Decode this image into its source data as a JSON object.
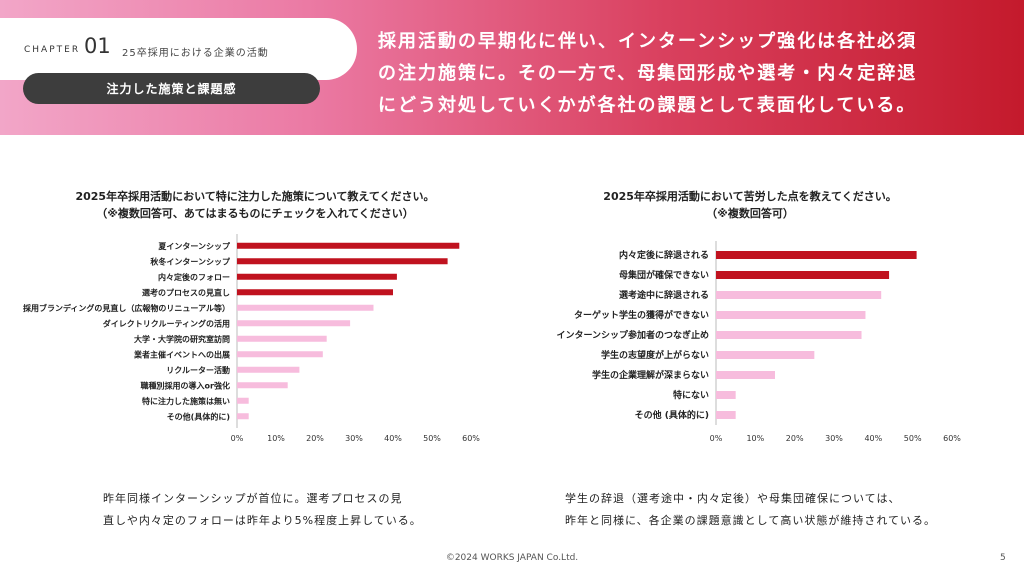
{
  "header": {
    "chapter_word": "CHAPTER",
    "chapter_num": "01",
    "chapter_title": "25卒採用における企業の活動",
    "topic": "注力した施策と課題感",
    "headline_lines": [
      "採用活動の早期化に伴い、インターンシップ強化は各社必須",
      "の注力施策に。その一方で、母集団形成や選考・内々定辞退",
      "にどう対処していくかが各社の課題として表面化している。"
    ]
  },
  "colors": {
    "highlight": "#c0121f",
    "normal": "#f7bcdd"
  },
  "chart_data": [
    {
      "type": "bar",
      "orientation": "horizontal",
      "title_lines": [
        "2025年卒採用活動において特に注力した施策について教えてください。",
        "（※複数回答可、あてはまるものにチェックを入れてください）"
      ],
      "categories": [
        "夏インターンシップ",
        "秋冬インターンシップ",
        "内々定後のフォロー",
        "選考のプロセスの見直し",
        "採用ブランディングの見直し（広報物のリニューアル等）",
        "ダイレクトリクルーティングの活用",
        "大学・大学院の研究室訪問",
        "業者主催イベントへの出展",
        "リクルーター活動",
        "職種別採用の導入or強化",
        "特に注力した施策は無い",
        "その他(具体的に)"
      ],
      "values": [
        57,
        54,
        41,
        40,
        35,
        29,
        23,
        22,
        16,
        13,
        3,
        3
      ],
      "highlight": [
        true,
        true,
        true,
        true,
        false,
        false,
        false,
        false,
        false,
        false,
        false,
        false
      ],
      "xlim": [
        0,
        60
      ],
      "xticks": [
        "0%",
        "10%",
        "20%",
        "30%",
        "40%",
        "50%",
        "60%"
      ],
      "grid": false
    },
    {
      "type": "bar",
      "orientation": "horizontal",
      "title_lines": [
        "2025年卒採用活動において苦労した点を教えてください。",
        "（※複数回答可）"
      ],
      "categories": [
        "内々定後に辞退される",
        "母集団が確保できない",
        "選考途中に辞退される",
        "ターゲット学生の獲得ができない",
        "インターンシップ参加者のつなぎ止め",
        "学生の志望度が上がらない",
        "学生の企業理解が深まらない",
        "特にない",
        "その他 (具体的に)"
      ],
      "values": [
        51,
        44,
        42,
        38,
        37,
        25,
        15,
        5,
        5
      ],
      "highlight": [
        true,
        true,
        false,
        false,
        false,
        false,
        false,
        false,
        false
      ],
      "xlim": [
        0,
        60
      ],
      "xticks": [
        "0%",
        "10%",
        "20%",
        "30%",
        "40%",
        "50%",
        "60%"
      ],
      "grid": false
    }
  ],
  "comments": {
    "left": [
      "昨年同様インターンシップが首位に。選考プロセスの見",
      "直しや内々定のフォローは昨年より5%程度上昇している。"
    ],
    "right": [
      "学生の辞退（選考途中・内々定後）や母集団確保については、",
      "昨年と同様に、各企業の課題意識として高い状態が維持されている。"
    ]
  },
  "footer": {
    "copyright": "©2024 WORKS JAPAN Co.Ltd.",
    "page": "5"
  }
}
